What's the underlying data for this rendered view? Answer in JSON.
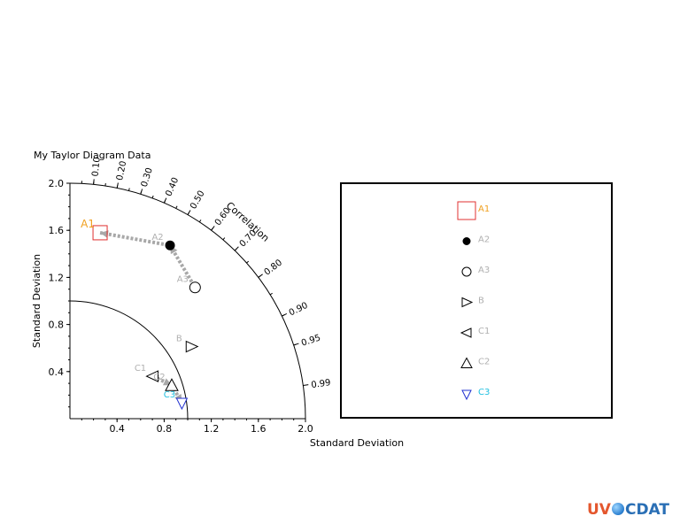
{
  "chart_data": {
    "type": "scatter",
    "subtype": "taylor-diagram",
    "title": "My Taylor Diagram Data",
    "xlabel": "Standard Deviation",
    "ylabel": "Standard Deviation",
    "arc_label": "Correlation",
    "std_lim": [
      0,
      2.0
    ],
    "x_ticks": [
      "0.4",
      "0.8",
      "1.2",
      "1.6",
      "2.0"
    ],
    "y_ticks": [
      "0.4",
      "0.8",
      "1.2",
      "1.6",
      "2.0"
    ],
    "correlation_ticks": [
      "0.10",
      "0.20",
      "0.30",
      "0.40",
      "0.50",
      "0.60",
      "0.70",
      "0.80",
      "0.90",
      "0.95",
      "0.99"
    ],
    "reference_std": 1.0,
    "points": [
      {
        "name": "A1",
        "std": 1.6,
        "corr": 0.16,
        "marker": "square-open",
        "color": "#e03030",
        "label_color": "#f0a020"
      },
      {
        "name": "A2",
        "std": 1.7,
        "corr": 0.5,
        "marker": "circle-filled",
        "color": "#000000",
        "label_color": "#b0b0b0"
      },
      {
        "name": "A3",
        "std": 1.54,
        "corr": 0.69,
        "marker": "circle-open",
        "color": "#000000",
        "label_color": "#b0b0b0"
      },
      {
        "name": "B",
        "std": 1.2,
        "corr": 0.86,
        "marker": "triangle-right",
        "color": "#000000",
        "label_color": "#b0b0b0"
      },
      {
        "name": "C1",
        "std": 0.79,
        "corr": 0.89,
        "marker": "triangle-left",
        "color": "#000000",
        "label_color": "#b0b0b0"
      },
      {
        "name": "C2",
        "std": 0.91,
        "corr": 0.95,
        "marker": "triangle-up",
        "color": "#000000",
        "label_color": "#b0b0b0"
      },
      {
        "name": "C3",
        "std": 0.96,
        "corr": 0.99,
        "marker": "triangle-down",
        "color": "#2030d0",
        "label_color": "#20c0e0"
      }
    ],
    "arrows": [
      {
        "from": "A1",
        "to": "A2",
        "color": "#a8a8a8",
        "style": "dashed"
      },
      {
        "from": "A2",
        "to": "A3",
        "color": "#a8a8a8",
        "style": "dashed"
      },
      {
        "from": "C2",
        "to": "C1",
        "color": "#a8a8a8",
        "style": "dashed"
      },
      {
        "from": "C3",
        "to": "C2",
        "color": "#a8a8a8",
        "style": "dashed"
      }
    ],
    "legend": {
      "placement": "right",
      "entries": [
        "A1",
        "A2",
        "A3",
        "B",
        "C1",
        "C2",
        "C3"
      ]
    }
  },
  "logo": {
    "left": "UV",
    "right": "CDAT"
  }
}
